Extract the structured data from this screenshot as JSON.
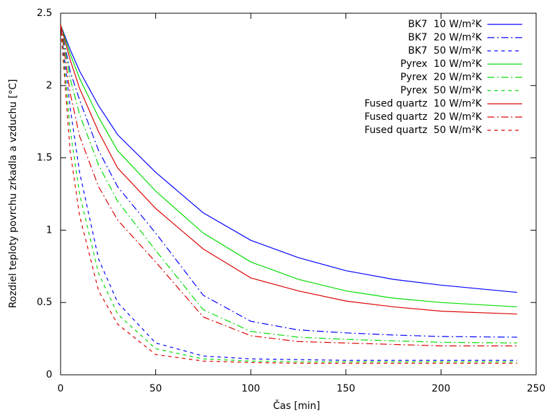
{
  "chart_data": {
    "type": "line",
    "xlabel": "Čas [min]",
    "ylabel": "Rozdiel teploty povrchu zrkadla a vzduchu [°C]",
    "x": [
      0,
      5,
      10,
      20,
      30,
      50,
      75,
      100,
      125,
      150,
      175,
      200,
      240
    ],
    "xlim": [
      0,
      250
    ],
    "xticks": [
      0,
      50,
      100,
      150,
      200,
      250
    ],
    "ylim": [
      0,
      2.5
    ],
    "yticks": [
      0,
      0.5,
      1,
      1.5,
      2,
      2.5
    ],
    "legend": "top-right",
    "series": [
      {
        "name": "BK7  10 W/m²K",
        "color": "#0000ff",
        "style": "solid",
        "values": [
          2.42,
          2.25,
          2.1,
          1.86,
          1.66,
          1.4,
          1.12,
          0.93,
          0.81,
          0.72,
          0.66,
          0.62,
          0.57
        ]
      },
      {
        "name": "BK7  20 W/m²K",
        "color": "#0000ff",
        "style": "dashdot",
        "values": [
          2.42,
          2.1,
          1.9,
          1.55,
          1.3,
          0.98,
          0.55,
          0.37,
          0.31,
          0.29,
          0.275,
          0.265,
          0.26
        ]
      },
      {
        "name": "BK7  50 W/m²K",
        "color": "#0000ff",
        "style": "dashed",
        "values": [
          2.42,
          1.85,
          1.4,
          0.8,
          0.5,
          0.22,
          0.13,
          0.11,
          0.105,
          0.1,
          0.1,
          0.1,
          0.1
        ]
      },
      {
        "name": "Pyrex  10 W/m²K",
        "color": "#00dd00",
        "style": "solid",
        "values": [
          2.42,
          2.22,
          2.05,
          1.78,
          1.55,
          1.27,
          0.98,
          0.78,
          0.66,
          0.58,
          0.53,
          0.5,
          0.47
        ]
      },
      {
        "name": "Pyrex  20 W/m²K",
        "color": "#00dd00",
        "style": "dashdot",
        "values": [
          2.42,
          2.05,
          1.8,
          1.45,
          1.2,
          0.86,
          0.45,
          0.3,
          0.26,
          0.245,
          0.235,
          0.225,
          0.22
        ]
      },
      {
        "name": "Pyrex  50 W/m²K",
        "color": "#00dd00",
        "style": "dashed",
        "values": [
          2.42,
          1.7,
          1.25,
          0.7,
          0.42,
          0.18,
          0.11,
          0.095,
          0.09,
          0.09,
          0.09,
          0.09,
          0.09
        ]
      },
      {
        "name": "Fused quartz  10 W/m²K",
        "color": "#dd0000",
        "style": "solid",
        "values": [
          2.42,
          2.18,
          1.98,
          1.68,
          1.43,
          1.15,
          0.87,
          0.67,
          0.58,
          0.51,
          0.47,
          0.44,
          0.42
        ]
      },
      {
        "name": "Fused quartz  20 W/m²K",
        "color": "#dd0000",
        "style": "dashdot",
        "values": [
          2.42,
          1.95,
          1.65,
          1.3,
          1.07,
          0.78,
          0.4,
          0.27,
          0.23,
          0.22,
          0.21,
          0.2,
          0.2
        ]
      },
      {
        "name": "Fused quartz  50 W/m²K",
        "color": "#dd0000",
        "style": "dashed",
        "values": [
          2.42,
          1.55,
          1.1,
          0.58,
          0.35,
          0.14,
          0.095,
          0.085,
          0.08,
          0.08,
          0.08,
          0.08,
          0.08
        ]
      }
    ]
  }
}
